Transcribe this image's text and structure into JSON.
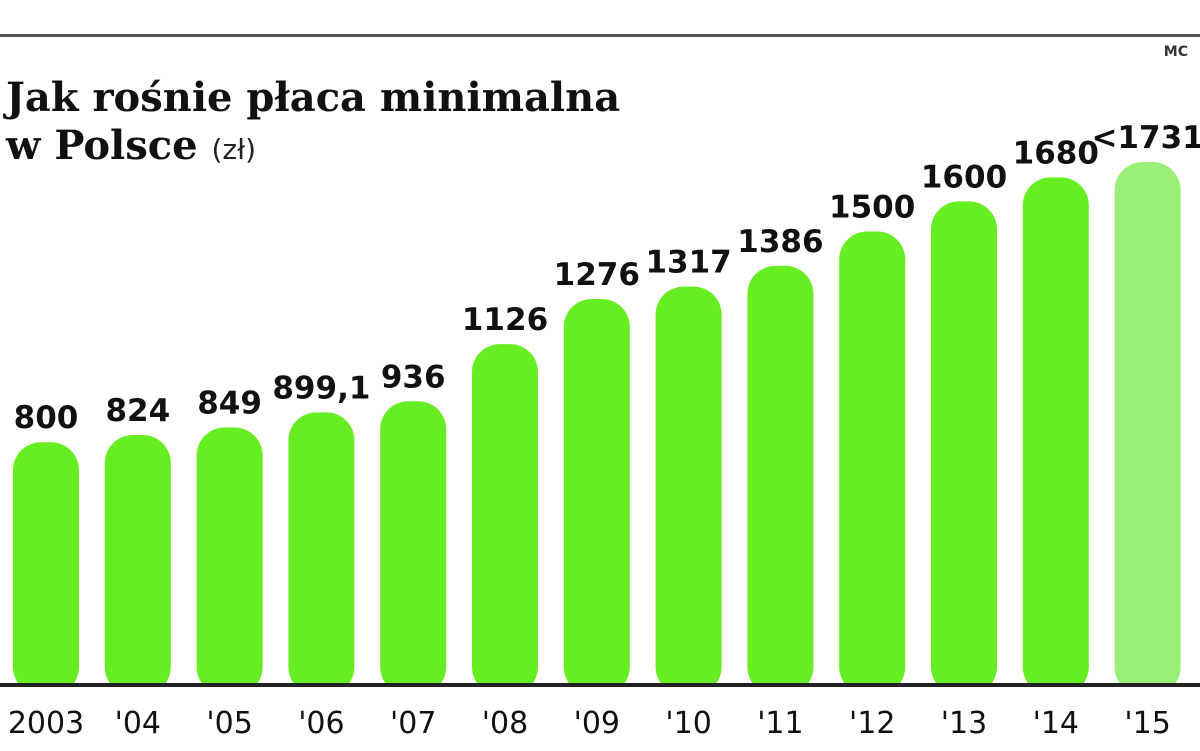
{
  "credit": "MC",
  "title_line1": "Jak rośnie płaca minimalna",
  "title_line2": "w Polsce",
  "unit": "(zł)",
  "colors": {
    "bar": "#66ee22",
    "bar_highlight": "#99ee77",
    "axis": "#222222"
  },
  "chart_data": {
    "type": "bar",
    "title": "Jak rośnie płaca minimalna w Polsce",
    "ylabel": "",
    "xlabel": "",
    "ylim": [
      0,
      1800
    ],
    "grid": false,
    "legend": "none",
    "categories": [
      "2003",
      "'04",
      "'05",
      "'06",
      "'07",
      "'08",
      "'09",
      "'10",
      "'11",
      "'12",
      "'13",
      "'14",
      "'15"
    ],
    "values": [
      800,
      824,
      849,
      899.1,
      936,
      1126,
      1276,
      1317,
      1386,
      1500,
      1600,
      1680,
      1731
    ],
    "data_labels": [
      "800",
      "824",
      "849",
      "899,1",
      "936",
      "1126",
      "1276",
      "1317",
      "1386",
      "1500",
      "1600",
      "1680",
      "<1731"
    ],
    "highlight_last": true
  }
}
